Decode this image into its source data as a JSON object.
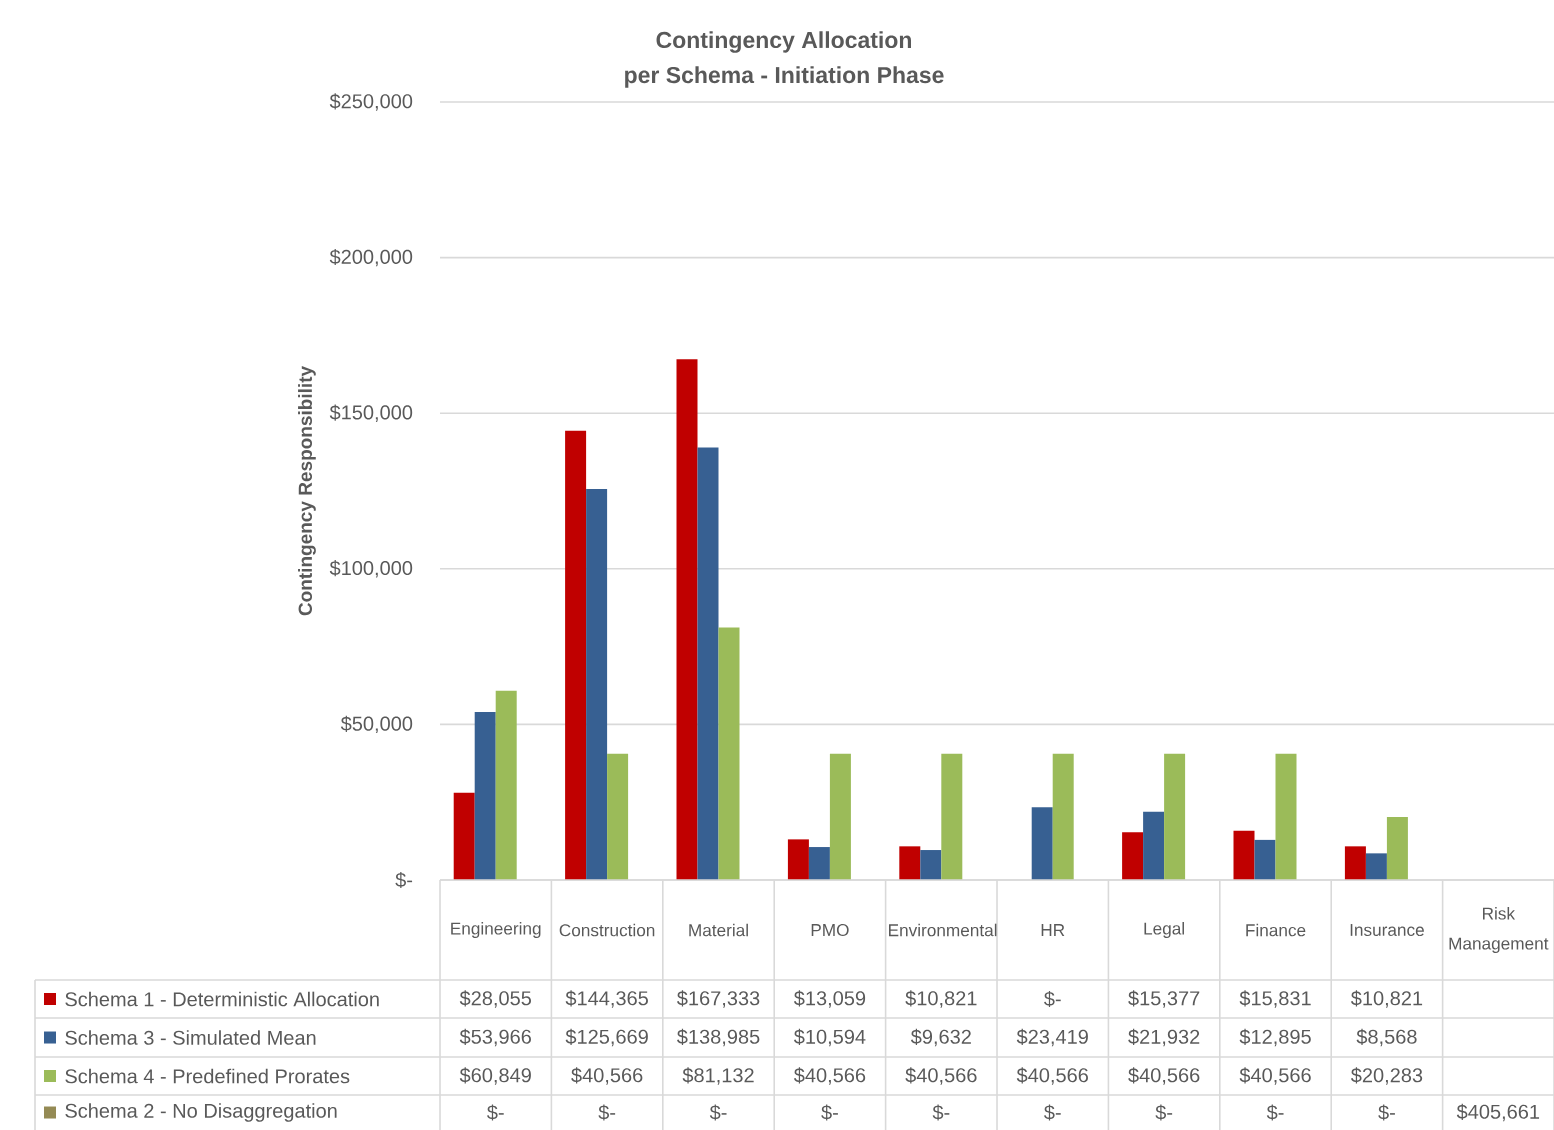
{
  "chart_data": {
    "type": "bar",
    "title": "Contingency Allocation",
    "subtitle": "per Schema - Initiation Phase",
    "ylabel": "Contingency Responsibility",
    "categories": [
      "Engineering",
      "Construction",
      "Material",
      "PMO",
      "Environmental",
      "HR",
      "Legal",
      "Finance",
      "Insurance",
      "Risk Management"
    ],
    "series": [
      {
        "name": "Schema 1 - Deterministic Allocation",
        "color": "#c00000",
        "values": [
          28055,
          144365,
          167333,
          13059,
          10821,
          0,
          15377,
          15831,
          10821,
          null
        ],
        "value_labels": [
          "$28,055",
          "$144,365",
          "$167,333",
          "$13,059",
          "$10,821",
          "$-",
          "$15,377",
          "$15,831",
          "$10,821",
          null
        ]
      },
      {
        "name": "Schema 3 - Simulated Mean",
        "color": "#376092",
        "values": [
          53966,
          125669,
          138985,
          10594,
          9632,
          23419,
          21932,
          12895,
          8568,
          null
        ],
        "value_labels": [
          "$53,966",
          "$125,669",
          "$138,985",
          "$10,594",
          "$9,632",
          "$23,419",
          "$21,932",
          "$12,895",
          "$8,568",
          null
        ]
      },
      {
        "name": "Schema 4 - Predefined Prorates",
        "color": "#9bbb59",
        "values": [
          60849,
          40566,
          81132,
          40566,
          40566,
          40566,
          40566,
          40566,
          20283,
          null
        ],
        "value_labels": [
          "$60,849",
          "$40,566",
          "$81,132",
          "$40,566",
          "$40,566",
          "$40,566",
          "$40,566",
          "$40,566",
          "$20,283",
          null
        ]
      },
      {
        "name": "Schema 2 - No Disaggregation",
        "color": "#948a54",
        "values": [
          0,
          0,
          0,
          0,
          0,
          0,
          0,
          0,
          0,
          null
        ],
        "value_labels": [
          "$-",
          "$-",
          "$-",
          "$-",
          "$-",
          "$-",
          "$-",
          "$-",
          "$-",
          "$405,661"
        ]
      }
    ],
    "ylim": [
      0,
      250000
    ],
    "yticks": [
      {
        "value": 0,
        "label": "$-"
      },
      {
        "value": 50000,
        "label": "$50,000"
      },
      {
        "value": 100000,
        "label": "$100,000"
      },
      {
        "value": 150000,
        "label": "$150,000"
      },
      {
        "value": 200000,
        "label": "$200,000"
      },
      {
        "value": 250000,
        "label": "$250,000"
      }
    ],
    "grid": "y",
    "legend": "bottom"
  }
}
